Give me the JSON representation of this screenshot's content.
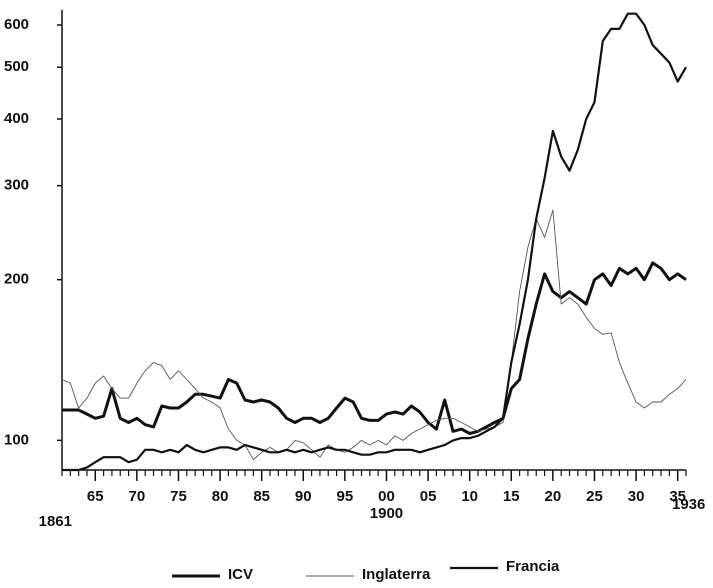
{
  "chart_data": {
    "type": "line",
    "log_scale_y": true,
    "legend": "bottom",
    "x": [
      1861,
      1862,
      1863,
      1864,
      1865,
      1866,
      1867,
      1868,
      1869,
      1870,
      1871,
      1872,
      1873,
      1874,
      1875,
      1876,
      1877,
      1878,
      1879,
      1880,
      1881,
      1882,
      1883,
      1884,
      1885,
      1886,
      1887,
      1888,
      1889,
      1890,
      1891,
      1892,
      1893,
      1894,
      1895,
      1896,
      1897,
      1898,
      1899,
      1900,
      1901,
      1902,
      1903,
      1904,
      1905,
      1906,
      1907,
      1908,
      1909,
      1910,
      1911,
      1912,
      1913,
      1914,
      1915,
      1916,
      1917,
      1918,
      1919,
      1920,
      1921,
      1922,
      1923,
      1924,
      1925,
      1926,
      1927,
      1928,
      1929,
      1930,
      1931,
      1932,
      1933,
      1934,
      1935,
      1936
    ],
    "series": [
      {
        "name": "ICV",
        "color": "#111111",
        "values": [
          114,
          114,
          114,
          112,
          110,
          111,
          125,
          110,
          108,
          110,
          107,
          106,
          116,
          115,
          115,
          118,
          122,
          122,
          121,
          120,
          130,
          128,
          119,
          118,
          119,
          118,
          115,
          110,
          108,
          110,
          110,
          108,
          110,
          115,
          120,
          118,
          110,
          109,
          109,
          112,
          113,
          112,
          116,
          113,
          108,
          105,
          119,
          104,
          105,
          103,
          104,
          106,
          108,
          110,
          125,
          130,
          155,
          180,
          205,
          190,
          185,
          190,
          185,
          180,
          200,
          205,
          195,
          210,
          205,
          210,
          200,
          215,
          210,
          200,
          205,
          200
        ]
      },
      {
        "name": "Inglaterra",
        "color": "#555555",
        "values": [
          130,
          128,
          115,
          120,
          128,
          132,
          125,
          120,
          120,
          128,
          135,
          140,
          138,
          130,
          135,
          130,
          125,
          120,
          118,
          115,
          105,
          100,
          98,
          92,
          95,
          97,
          95,
          96,
          100,
          99,
          96,
          93,
          98,
          96,
          95,
          97,
          100,
          98,
          100,
          98,
          102,
          100,
          103,
          105,
          107,
          109,
          110,
          110,
          108,
          106,
          104,
          105,
          106,
          108,
          140,
          190,
          230,
          260,
          240,
          270,
          180,
          185,
          180,
          170,
          162,
          158,
          159,
          140,
          128,
          118,
          115,
          118,
          118,
          122,
          125,
          130
        ]
      },
      {
        "name": "Francia",
        "color": "#111111",
        "values": [
          88,
          88,
          88,
          89,
          91,
          93,
          93,
          93,
          91,
          92,
          96,
          96,
          95,
          96,
          95,
          98,
          96,
          95,
          96,
          97,
          97,
          96,
          98,
          97,
          96,
          95,
          95,
          96,
          95,
          96,
          95,
          96,
          97,
          96,
          96,
          95,
          94,
          94,
          95,
          95,
          96,
          96,
          96,
          95,
          96,
          97,
          98,
          100,
          101,
          101,
          102,
          104,
          106,
          110,
          140,
          165,
          200,
          260,
          310,
          380,
          340,
          320,
          350,
          400,
          430,
          560,
          590,
          590,
          630,
          630,
          600,
          550,
          530,
          510,
          470,
          500
        ]
      }
    ],
    "xlim": [
      1861,
      1936
    ],
    "xticks": [
      {
        "value": 1865,
        "label": "65"
      },
      {
        "value": 1870,
        "label": "70"
      },
      {
        "value": 1875,
        "label": "75"
      },
      {
        "value": 1880,
        "label": "80"
      },
      {
        "value": 1885,
        "label": "85"
      },
      {
        "value": 1890,
        "label": "90"
      },
      {
        "value": 1895,
        "label": "95"
      },
      {
        "value": 1900,
        "label": "00"
      },
      {
        "value": 1905,
        "label": "05"
      },
      {
        "value": 1910,
        "label": "10"
      },
      {
        "value": 1915,
        "label": "15"
      },
      {
        "value": 1920,
        "label": "20"
      },
      {
        "value": 1925,
        "label": "25"
      },
      {
        "value": 1930,
        "label": "30"
      },
      {
        "value": 1935,
        "label": "35"
      }
    ],
    "xticks_years": [
      1861,
      1900,
      1936
    ],
    "ylim": [
      88,
      640
    ],
    "yticks": [
      100,
      200,
      300,
      400,
      500,
      600
    ]
  }
}
